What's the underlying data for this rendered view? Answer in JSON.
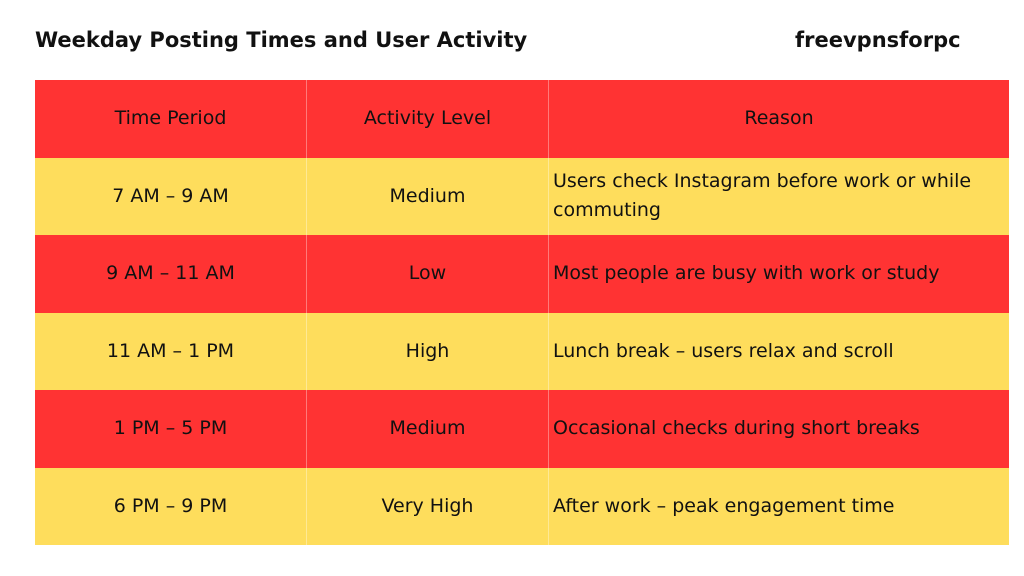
{
  "header": {
    "title": "Weekday Posting Times and User Activity",
    "brand": "freevpnsforpc"
  },
  "table": {
    "columns": [
      "Time Period",
      "Activity Level",
      "Reason"
    ],
    "rows": [
      {
        "time": "7 AM – 9 AM",
        "activity": "Medium",
        "reason": "Users check Instagram before work or while commuting"
      },
      {
        "time": "9 AM – 11 AM",
        "activity": "Low",
        "reason": "Most people are busy with work or study"
      },
      {
        "time": "11 AM – 1 PM",
        "activity": "High",
        "reason": "Lunch break – users relax and scroll"
      },
      {
        "time": "1 PM – 5 PM",
        "activity": "Medium",
        "reason": "Occasional checks during short breaks"
      },
      {
        "time": "6 PM – 9 PM",
        "activity": "Very High",
        "reason": "After work – peak engagement time"
      }
    ]
  },
  "colors": {
    "red_row": "#ff3333",
    "yellow_row": "#fedd5c"
  }
}
